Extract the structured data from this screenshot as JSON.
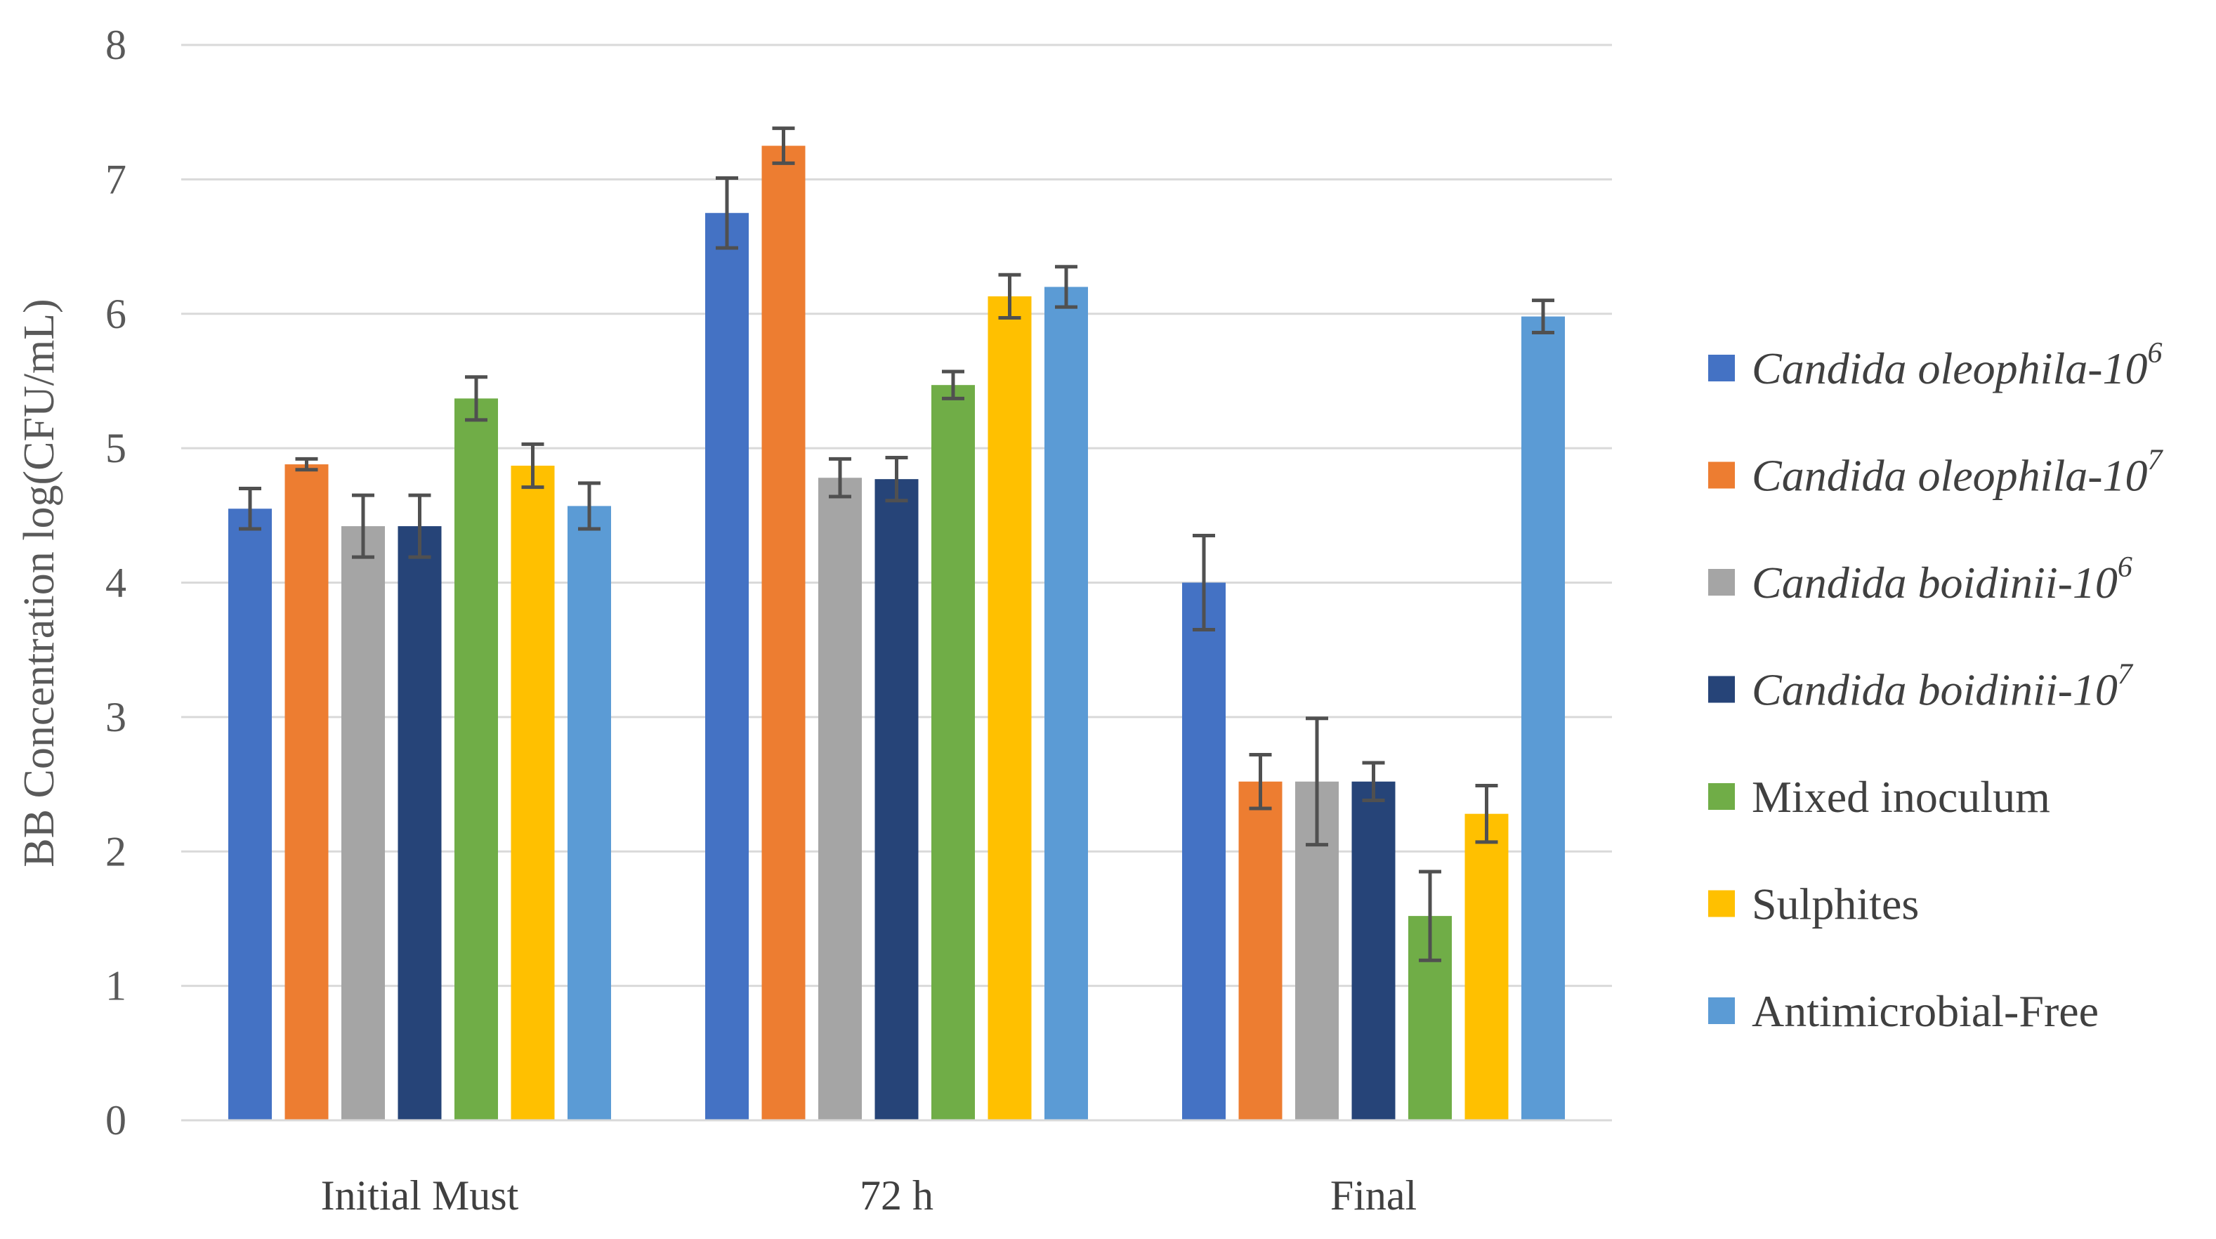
{
  "chart_data": {
    "type": "bar",
    "ylabel": "BB Concentration log(CFU/mL)",
    "xlabel": "",
    "ylim": [
      0,
      8
    ],
    "yticks": [
      0,
      1,
      2,
      3,
      4,
      5,
      6,
      7,
      8
    ],
    "grid": true,
    "legend_position": "right",
    "categories": [
      "Initial Must",
      "72 h",
      "Final"
    ],
    "series": [
      {
        "name": "Candida oleophila-10",
        "name_superscript": "6",
        "italic": true,
        "color": "#4472C4",
        "values": [
          4.55,
          6.75,
          4.0
        ],
        "errors": [
          0.15,
          0.26,
          0.35
        ]
      },
      {
        "name": "Candida oleophila-10",
        "name_superscript": "7",
        "italic": true,
        "color": "#ED7D31",
        "values": [
          4.88,
          7.25,
          2.52
        ],
        "errors": [
          0.04,
          0.13,
          0.2
        ]
      },
      {
        "name": "Candida boidinii-10",
        "name_superscript": "6",
        "italic": true,
        "color": "#A5A5A5",
        "values": [
          4.42,
          4.78,
          2.52
        ],
        "errors": [
          0.23,
          0.14,
          0.47
        ]
      },
      {
        "name": "Candida boidinii-10",
        "name_superscript": "7",
        "italic": true,
        "color": "#264478",
        "values": [
          4.42,
          4.77,
          2.52
        ],
        "errors": [
          0.23,
          0.16,
          0.14
        ]
      },
      {
        "name": "Mixed inoculum",
        "name_superscript": "",
        "italic": false,
        "color": "#70AD47",
        "values": [
          5.37,
          5.47,
          1.52
        ],
        "errors": [
          0.16,
          0.1,
          0.33
        ]
      },
      {
        "name": "Sulphites",
        "name_superscript": "",
        "italic": false,
        "color": "#FFC000",
        "values": [
          4.87,
          6.13,
          2.28
        ],
        "errors": [
          0.16,
          0.16,
          0.21
        ]
      },
      {
        "name": "Antimicrobial-Free",
        "name_superscript": "",
        "italic": false,
        "color": "#5B9BD5",
        "values": [
          4.57,
          6.2,
          5.98
        ],
        "errors": [
          0.17,
          0.15,
          0.12
        ]
      }
    ]
  }
}
